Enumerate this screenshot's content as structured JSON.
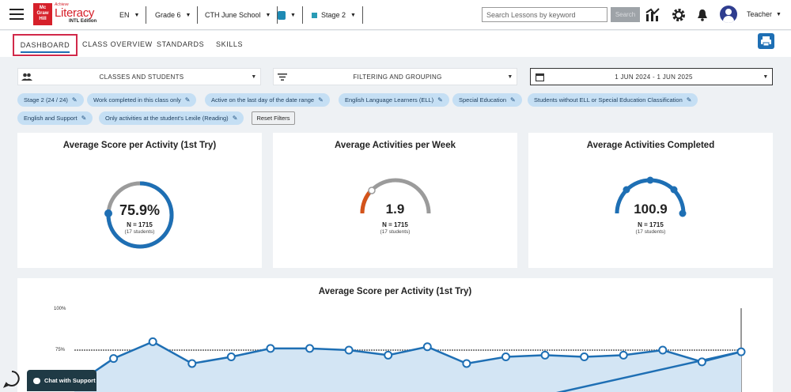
{
  "logo": {
    "brand_box": "Mc Graw Hill",
    "small": "Achieve",
    "big": "Literacy",
    "edition": "INTL Edition"
  },
  "header": {
    "language": "EN",
    "grade": "Grade 6",
    "school": "CTH June School",
    "stage": "Stage 2",
    "search_placeholder": "Search Lessons by keyword",
    "search_button": "Search",
    "user_role": "Teacher"
  },
  "tabs": [
    "DASHBOARD",
    "CLASS OVERVIEW",
    "STANDARDS",
    "SKILLS"
  ],
  "filters": {
    "classes": "CLASSES AND STUDENTS",
    "grouping": "FILTERING AND GROUPING",
    "date_range": "1 JUN 2024 - 1 JUN 2025"
  },
  "chips": [
    "Stage 2 (24 / 24)",
    "Work completed in this class only",
    "Active on the last day of the date range",
    "English Language Learners (ELL)",
    "Special Education",
    "Students without ELL or Special Education Classification",
    "English and Support",
    "Only activities at the student's Lexile (Reading)"
  ],
  "reset_filters": "Reset Filters",
  "cards": [
    {
      "title": "Average Score per Activity (1st Try)",
      "value": "75.9%",
      "n": "N = 1715",
      "students": "(17 students)"
    },
    {
      "title": "Average Activities per Week",
      "value": "1.9",
      "n": "N = 1715",
      "students": "(17 students)"
    },
    {
      "title": "Average Activities Completed",
      "value": "100.9",
      "n": "N = 1715",
      "students": "(17 students)"
    }
  ],
  "chart_title": "Average Score per Activity (1st Try)",
  "chart_data": {
    "type": "line",
    "title": "Average Score per Activity (1st Try)",
    "y_ticks": [
      "100%",
      "75%"
    ],
    "reference_line": 75,
    "series": [
      {
        "values": [
          54,
          70,
          80,
          67,
          71,
          76,
          76,
          75,
          72,
          77,
          67,
          71,
          72,
          71,
          72,
          75,
          68,
          74
        ]
      }
    ]
  },
  "support": {
    "chat_label": "Chat with Support"
  },
  "colors": {
    "primary": "#1e6fb4",
    "gauge_track": "#9b9b9b",
    "gauge_low": "#d4531a",
    "active_tab_outline": "#d1294a"
  }
}
